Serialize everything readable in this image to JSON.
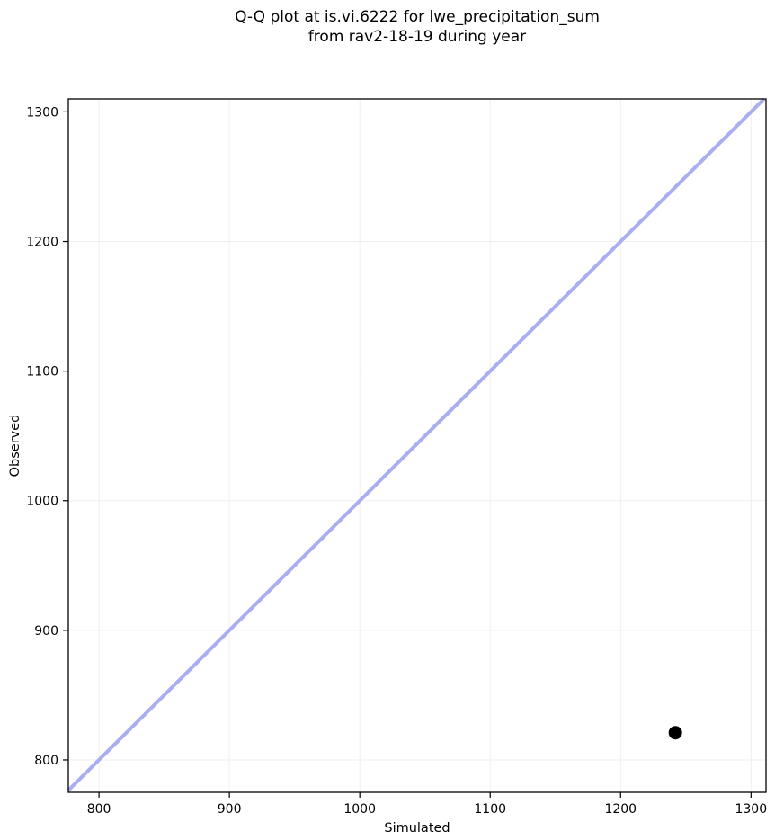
{
  "figure": {
    "title_lines": [
      "Q-Q plot at is.vi.6222 for lwe_precipitation_sum",
      "from rav2-18-19 during year"
    ]
  },
  "chart_data": {
    "type": "scatter",
    "title": "Q-Q plot at is.vi.6222 for lwe_precipitation_sum\nfrom rav2-18-19 during year",
    "xlabel": "Simulated",
    "ylabel": "Observed",
    "xlim": [
      776.5,
      1311.5
    ],
    "ylim": [
      775.0,
      1310.0
    ],
    "xticks": [
      800,
      900,
      1000,
      1100,
      1200,
      1300
    ],
    "yticks": [
      800,
      900,
      1000,
      1100,
      1200,
      1300
    ],
    "grid": true,
    "grid_color": "#efefef",
    "legend": "none",
    "points": [
      {
        "x": 1242,
        "y": 821
      }
    ],
    "marker_color": "#000000",
    "marker_radius": 7.5,
    "identity_line": {
      "from": 776.5,
      "to": 1310.0,
      "color": "#a8aef0",
      "width": 4
    },
    "spine_color": "#000000"
  }
}
